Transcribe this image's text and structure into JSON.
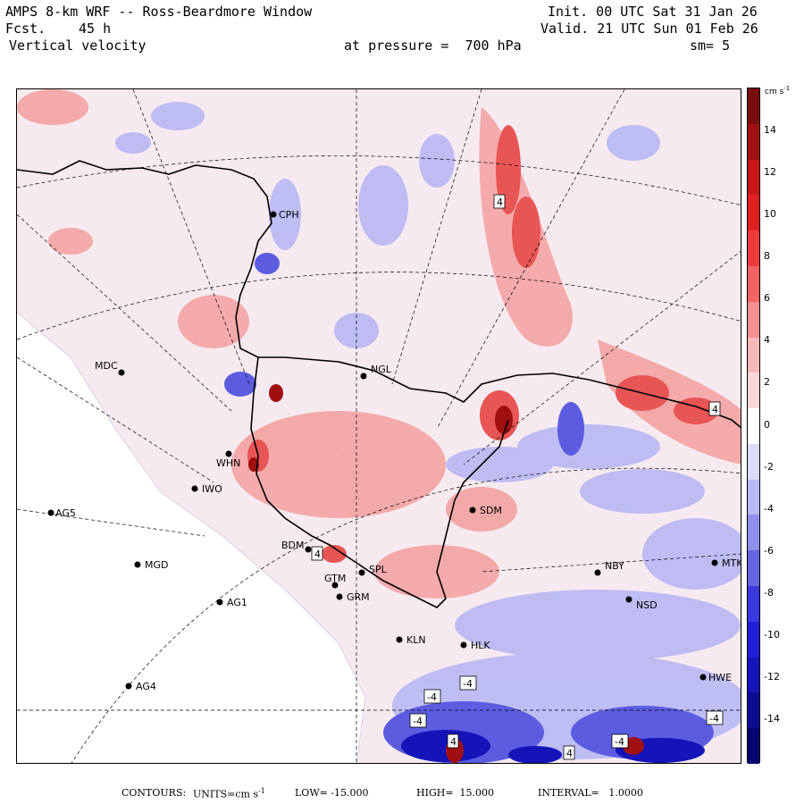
{
  "header": {
    "model": "AMPS 8-km WRF -- Ross-Beardmore Window",
    "init": "Init. 00 UTC Sat 31 Jan 26",
    "fcst_label": "Fcst.",
    "fcst_value": "45 h",
    "valid": "Valid. 21 UTC Sun 01 Feb 26",
    "field": "Vertical velocity",
    "pressure": "at pressure =  700 hPa",
    "smoothing": "sm= 5"
  },
  "colorbar": {
    "units": "cm s",
    "units_exp": "-1",
    "ticks": [
      "14",
      "12",
      "10",
      "8",
      "6",
      "4",
      "2",
      "0",
      "-2",
      "-4",
      "-6",
      "-8",
      "-10",
      "-12",
      "-14"
    ],
    "colors": [
      "#7a0d0d",
      "#a01010",
      "#c81818",
      "#e02020",
      "#f03a3a",
      "#f06464",
      "#f49090",
      "#f8b8b8",
      "#fbd8d8",
      "#ffffff",
      "#dcdcfa",
      "#b8b8f4",
      "#9090ec",
      "#6464e0",
      "#3a3ae0",
      "#1f1fd8",
      "#1414b8",
      "#0c0c90",
      "#060670"
    ]
  },
  "footer": {
    "contours_label": "CONTOURS:",
    "units_label": "UNITS=cm s",
    "units_exp": "-1",
    "low": "LOW= -15.000",
    "high": "HIGH=  15.000",
    "interval": "INTERVAL=   1.0000"
  },
  "stations": [
    {
      "id": "CPH"
    },
    {
      "id": "MDC"
    },
    {
      "id": "NGL"
    },
    {
      "id": "WHN"
    },
    {
      "id": "IWO"
    },
    {
      "id": "AG5"
    },
    {
      "id": "MGD"
    },
    {
      "id": "AG1"
    },
    {
      "id": "AG4"
    },
    {
      "id": "BDM"
    },
    {
      "id": "GTM"
    },
    {
      "id": "GRM"
    },
    {
      "id": "SPL"
    },
    {
      "id": "KLN"
    },
    {
      "id": "HLK"
    },
    {
      "id": "NBY"
    },
    {
      "id": "MTK"
    },
    {
      "id": "NSD"
    },
    {
      "id": "HWE"
    },
    {
      "id": "SDM"
    }
  ],
  "contour_labels": [
    "4",
    "4",
    "4",
    "-4",
    "-4",
    "-4",
    "-4",
    "4",
    "4",
    "-4"
  ],
  "colors": {
    "positive": "#f4a6a6",
    "negative": "#b8b8f4",
    "neutral": "#f6eaf0",
    "coast": "#000000"
  }
}
